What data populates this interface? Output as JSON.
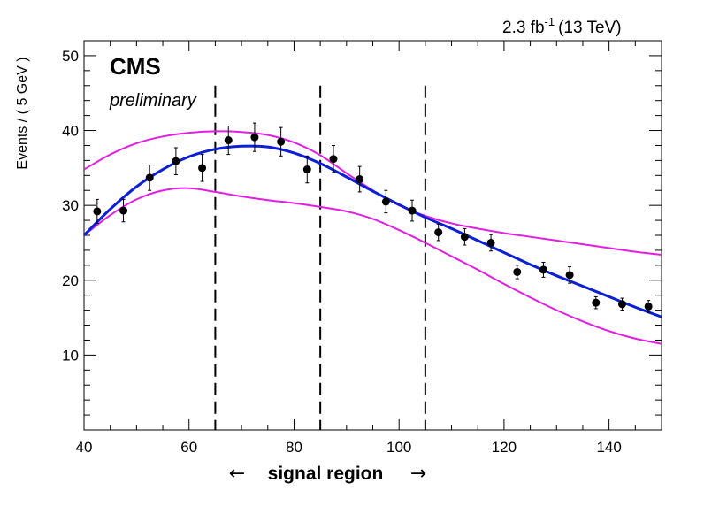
{
  "header": {
    "lumi_value": "2.3 fb",
    "lumi_exponent": "-1",
    "lumi_energy": "(13 TeV)",
    "experiment": "CMS",
    "status": "preliminary"
  },
  "chart_data": {
    "type": "scatter",
    "title": "",
    "xlabel": "signal region",
    "xlabel_arrow_left": "←",
    "xlabel_arrow_right": "→",
    "ylabel": "Events / ( 5 GeV )",
    "xlim": [
      40,
      150
    ],
    "ylim": [
      0,
      52
    ],
    "xticks": [
      40,
      60,
      80,
      100,
      120,
      140
    ],
    "yticks": [
      10,
      20,
      30,
      40,
      50
    ],
    "grid": false,
    "vertical_lines": [
      65,
      85,
      105
    ],
    "colors": {
      "fit": "#0a1fd6",
      "band": "#e21ee2",
      "data": "#000000"
    },
    "series": [
      {
        "kind": "points",
        "x": [
          42.5,
          47.5,
          52.5,
          57.5,
          62.5,
          67.5,
          72.5,
          77.5,
          82.5,
          87.5,
          92.5,
          97.5,
          102.5,
          107.5,
          112.5,
          117.5,
          122.5,
          127.5,
          132.5,
          137.5,
          142.5,
          147.5
        ],
        "y": [
          29.2,
          29.3,
          33.7,
          35.9,
          35.0,
          38.7,
          39.1,
          38.5,
          34.8,
          36.2,
          33.5,
          30.5,
          29.3,
          26.4,
          25.8,
          25.0,
          21.1,
          21.4,
          20.7,
          17.0,
          16.8,
          16.5
        ],
        "err": [
          1.6,
          1.5,
          1.7,
          1.8,
          1.8,
          1.9,
          1.9,
          1.9,
          1.8,
          1.8,
          1.7,
          1.5,
          1.4,
          1.1,
          1.1,
          1.1,
          0.9,
          1.0,
          1.1,
          0.8,
          0.8,
          0.8
        ]
      },
      {
        "kind": "fit",
        "x": [
          40,
          45,
          50,
          55,
          60,
          65,
          70,
          75,
          80,
          85,
          90,
          95,
          100,
          105,
          110,
          115,
          120,
          125,
          130,
          135,
          140,
          145,
          150
        ],
        "y": [
          26.0,
          29.5,
          32.5,
          34.8,
          36.5,
          37.5,
          37.9,
          37.8,
          37.0,
          35.6,
          33.8,
          31.9,
          30.1,
          28.4,
          26.9,
          25.3,
          23.7,
          22.1,
          20.6,
          19.2,
          17.8,
          16.4,
          15.1
        ]
      },
      {
        "kind": "band_upper",
        "x": [
          40,
          45,
          50,
          55,
          60,
          65,
          70,
          75,
          80,
          85,
          90,
          95,
          100,
          105,
          110,
          115,
          120,
          125,
          130,
          135,
          140,
          145,
          150
        ],
        "y": [
          34.8,
          36.8,
          38.3,
          39.2,
          39.7,
          39.9,
          39.8,
          39.4,
          38.4,
          36.7,
          34.3,
          32.0,
          30.0,
          28.6,
          27.6,
          26.9,
          26.3,
          25.8,
          25.3,
          24.8,
          24.3,
          23.8,
          23.4
        ]
      },
      {
        "kind": "band_lower",
        "x": [
          40,
          45,
          50,
          55,
          60,
          65,
          70,
          75,
          80,
          85,
          90,
          95,
          100,
          105,
          110,
          115,
          120,
          125,
          130,
          135,
          140,
          145,
          150
        ],
        "y": [
          26.0,
          28.7,
          30.8,
          32.0,
          32.3,
          31.8,
          31.2,
          30.7,
          30.3,
          29.8,
          29.2,
          28.2,
          26.7,
          25.0,
          23.2,
          21.4,
          19.5,
          17.7,
          16.0,
          14.5,
          13.2,
          12.2,
          11.5
        ]
      }
    ]
  }
}
